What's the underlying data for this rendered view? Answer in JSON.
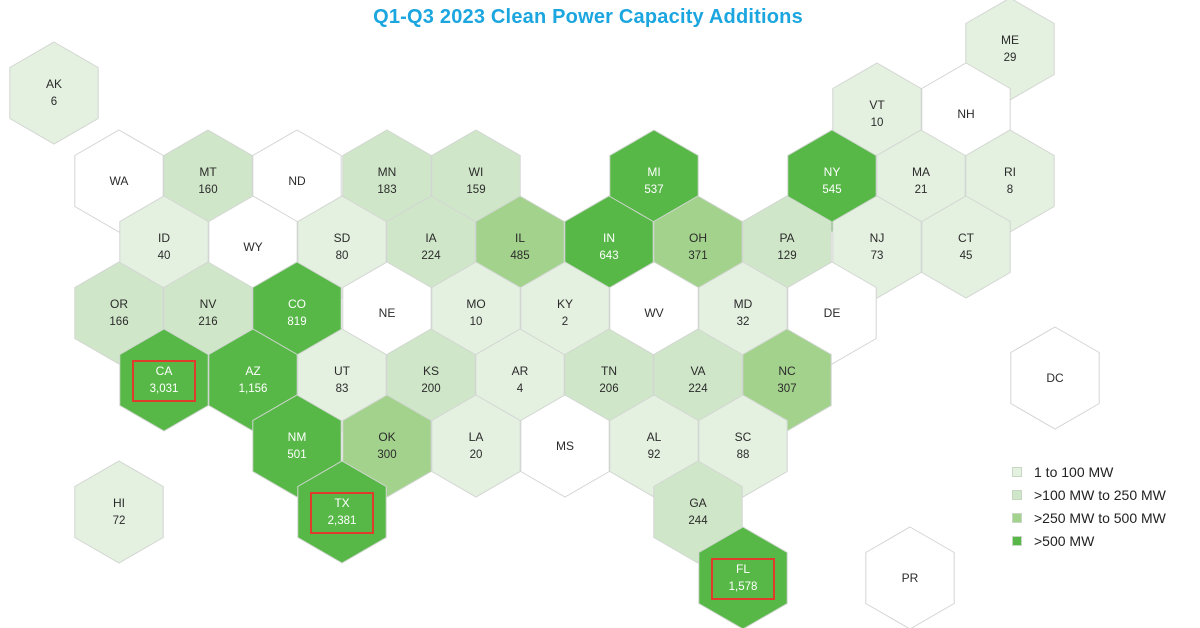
{
  "title": "Q1-Q3 2023 Clean Power Capacity Additions",
  "colors": {
    "none": "#ffffff",
    "tier1": "#e4f0e0",
    "tier2": "#cfe6c9",
    "tier3": "#a3d28d",
    "tier4": "#57b847",
    "stroke": "#d2d6d2",
    "highlight": "#e03c2c",
    "text_dark": "#2b2b2b",
    "text_light": "#ffffff"
  },
  "legend": [
    {
      "label": "1 to 100 MW",
      "color": "#e4f0e0"
    },
    {
      "label": ">100 MW to 250 MW",
      "color": "#cfe6c9"
    },
    {
      "label": ">250 MW to 500 MW",
      "color": "#a3d28d"
    },
    {
      "label": ">500 MW",
      "color": "#57b847"
    }
  ],
  "states": [
    {
      "abbr": "AK",
      "value": "6",
      "tier": 1
    },
    {
      "abbr": "ME",
      "value": "29",
      "tier": 1
    },
    {
      "abbr": "VT",
      "value": "10",
      "tier": 1
    },
    {
      "abbr": "NH",
      "value": "",
      "tier": 0
    },
    {
      "abbr": "WA",
      "value": "",
      "tier": 0
    },
    {
      "abbr": "MT",
      "value": "160",
      "tier": 2
    },
    {
      "abbr": "ND",
      "value": "",
      "tier": 0
    },
    {
      "abbr": "MN",
      "value": "183",
      "tier": 2
    },
    {
      "abbr": "WI",
      "value": "159",
      "tier": 2
    },
    {
      "abbr": "MI",
      "value": "537",
      "tier": 4
    },
    {
      "abbr": "NY",
      "value": "545",
      "tier": 4
    },
    {
      "abbr": "MA",
      "value": "21",
      "tier": 1
    },
    {
      "abbr": "RI",
      "value": "8",
      "tier": 1
    },
    {
      "abbr": "ID",
      "value": "40",
      "tier": 1
    },
    {
      "abbr": "WY",
      "value": "",
      "tier": 0
    },
    {
      "abbr": "SD",
      "value": "80",
      "tier": 1
    },
    {
      "abbr": "IA",
      "value": "224",
      "tier": 2
    },
    {
      "abbr": "IL",
      "value": "485",
      "tier": 3
    },
    {
      "abbr": "IN",
      "value": "643",
      "tier": 4
    },
    {
      "abbr": "OH",
      "value": "371",
      "tier": 3
    },
    {
      "abbr": "PA",
      "value": "129",
      "tier": 2
    },
    {
      "abbr": "NJ",
      "value": "73",
      "tier": 1
    },
    {
      "abbr": "CT",
      "value": "45",
      "tier": 1
    },
    {
      "abbr": "OR",
      "value": "166",
      "tier": 2
    },
    {
      "abbr": "NV",
      "value": "216",
      "tier": 2
    },
    {
      "abbr": "CO",
      "value": "819",
      "tier": 4
    },
    {
      "abbr": "NE",
      "value": "",
      "tier": 0
    },
    {
      "abbr": "MO",
      "value": "10",
      "tier": 1
    },
    {
      "abbr": "KY",
      "value": "2",
      "tier": 1
    },
    {
      "abbr": "WV",
      "value": "",
      "tier": 0
    },
    {
      "abbr": "MD",
      "value": "32",
      "tier": 1
    },
    {
      "abbr": "DE",
      "value": "",
      "tier": 0
    },
    {
      "abbr": "CA",
      "value": "3,031",
      "tier": 4,
      "highlight": true
    },
    {
      "abbr": "AZ",
      "value": "1,156",
      "tier": 4
    },
    {
      "abbr": "UT",
      "value": "83",
      "tier": 1
    },
    {
      "abbr": "KS",
      "value": "200",
      "tier": 2
    },
    {
      "abbr": "AR",
      "value": "4",
      "tier": 1
    },
    {
      "abbr": "TN",
      "value": "206",
      "tier": 2
    },
    {
      "abbr": "VA",
      "value": "224",
      "tier": 2
    },
    {
      "abbr": "NC",
      "value": "307",
      "tier": 3
    },
    {
      "abbr": "DC",
      "value": "",
      "tier": 0
    },
    {
      "abbr": "NM",
      "value": "501",
      "tier": 4
    },
    {
      "abbr": "OK",
      "value": "300",
      "tier": 3
    },
    {
      "abbr": "LA",
      "value": "20",
      "tier": 1
    },
    {
      "abbr": "MS",
      "value": "",
      "tier": 0
    },
    {
      "abbr": "AL",
      "value": "92",
      "tier": 1
    },
    {
      "abbr": "SC",
      "value": "88",
      "tier": 1
    },
    {
      "abbr": "HI",
      "value": "72",
      "tier": 1
    },
    {
      "abbr": "TX",
      "value": "2,381",
      "tier": 4,
      "highlight": true
    },
    {
      "abbr": "GA",
      "value": "244",
      "tier": 2
    },
    {
      "abbr": "FL",
      "value": "1,578",
      "tier": 4,
      "highlight": true
    },
    {
      "abbr": "PR",
      "value": "",
      "tier": 0
    }
  ]
}
